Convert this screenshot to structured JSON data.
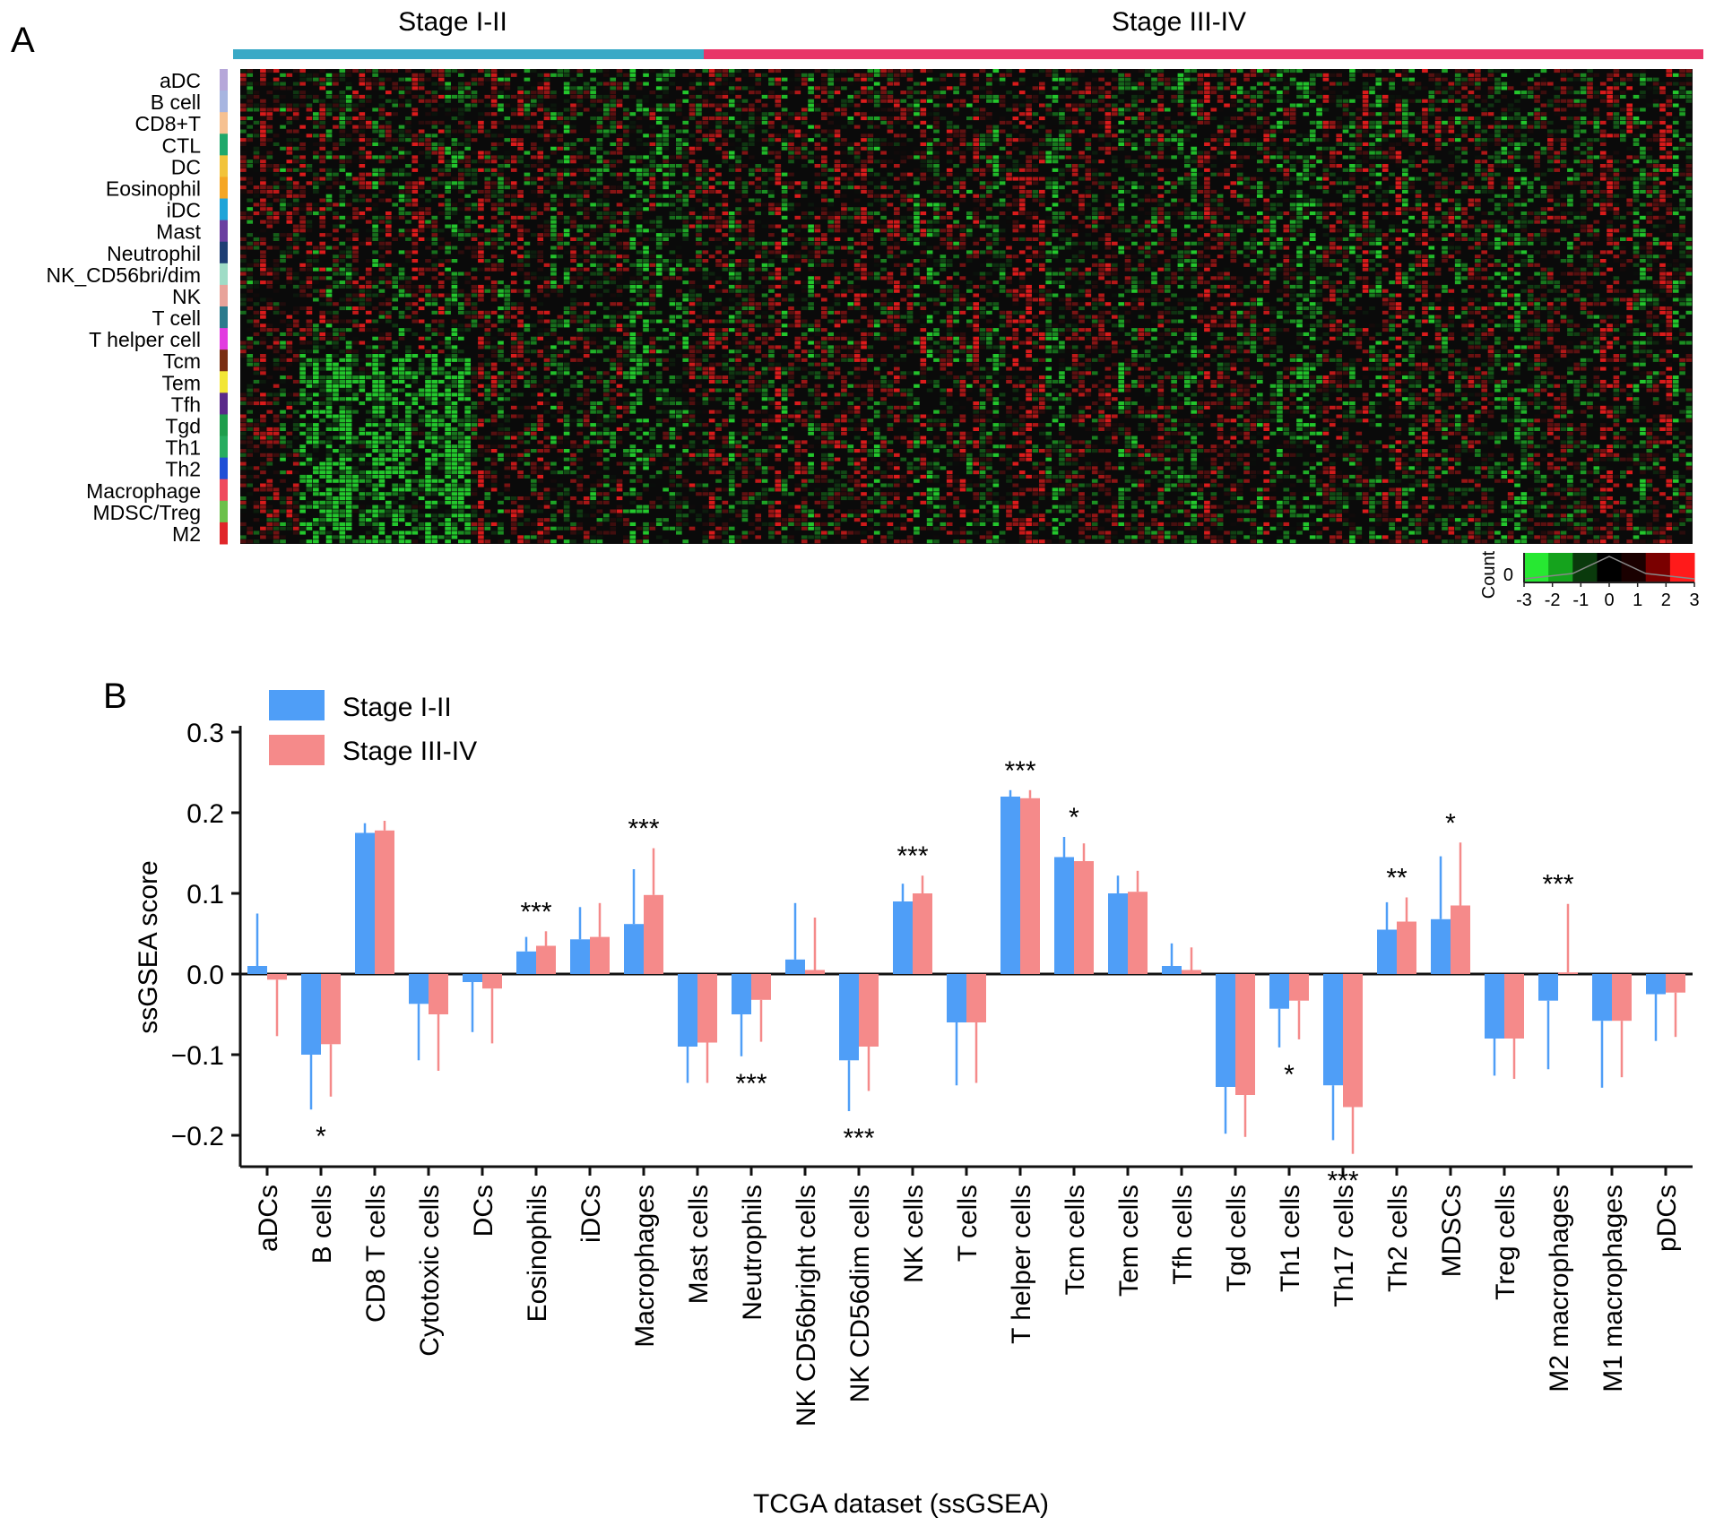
{
  "panel_a": {
    "label": "A",
    "groups": [
      {
        "name": "Stage I-II",
        "color": "#3aa9c6"
      },
      {
        "name": "Stage III-IV",
        "color": "#e83568"
      }
    ],
    "cell_types": [
      {
        "name": "aDC",
        "color": "#b6a7d9"
      },
      {
        "name": "B cell",
        "color": "#a7b5e0"
      },
      {
        "name": "CD8+T",
        "color": "#f6c191"
      },
      {
        "name": "CTL",
        "color": "#1fa86a"
      },
      {
        "name": "DC",
        "color": "#f2c33a"
      },
      {
        "name": "Eosinophil",
        "color": "#f5a623"
      },
      {
        "name": "iDC",
        "color": "#1fa4d8"
      },
      {
        "name": "Mast",
        "color": "#6a3fa0"
      },
      {
        "name": "Neutrophil",
        "color": "#1d3e74"
      },
      {
        "name": "NK_CD56bri/dim",
        "color": "#9fdcc6"
      },
      {
        "name": "NK",
        "color": "#e8a39a"
      },
      {
        "name": "T cell",
        "color": "#2b7a8c"
      },
      {
        "name": "T helper cell",
        "color": "#e23be0"
      },
      {
        "name": "Tcm",
        "color": "#7a2e12"
      },
      {
        "name": "Tem",
        "color": "#f2e635"
      },
      {
        "name": "Tfh",
        "color": "#5a2a8a"
      },
      {
        "name": "Tgd",
        "color": "#1e9e4c"
      },
      {
        "name": "Th1",
        "color": "#27ad5f"
      },
      {
        "name": "Th2",
        "color": "#1f4fd6"
      },
      {
        "name": "Macrophage",
        "color": "#ef4a5e"
      },
      {
        "name": "MDSC/Treg",
        "color": "#6cc04a"
      },
      {
        "name": "M2",
        "color": "#e0262a"
      }
    ],
    "legend": {
      "label": "Count",
      "zero_tick": "0",
      "ticks": [
        "-3",
        "-2",
        "-1",
        "0",
        "1",
        "2",
        "3"
      ],
      "colors": [
        "#27e832",
        "#15a31d",
        "#0a3a0c",
        "#000000",
        "#1a0000",
        "#7a0000",
        "#ff1a1a"
      ]
    }
  },
  "panel_b": {
    "label": "B",
    "legend": [
      {
        "name": "Stage I-II",
        "color": "#4f9ef7"
      },
      {
        "name": "Stage III-IV",
        "color": "#f58a8a"
      }
    ]
  },
  "chart_data": {
    "type": "bar",
    "xlabel": "TCGA dataset (ssGSEA)",
    "ylabel": "ssGSEA score",
    "ylim": [
      -0.24,
      0.3
    ],
    "yticks": [
      -0.2,
      -0.1,
      0.0,
      0.1,
      0.2,
      0.3
    ],
    "ytick_labels": [
      "−0.2",
      "−0.1",
      "0.0",
      "0.1",
      "0.2",
      "0.3"
    ],
    "grid": false,
    "legend_position": "top-left",
    "categories": [
      "aDCs",
      "B cells",
      "CD8 T cells",
      "Cytotoxic cells",
      "DCs",
      "Eosinophils",
      "iDCs",
      "Macrophages",
      "Mast cells",
      "Neutrophils",
      "NK CD56bright cells",
      "NK CD56dim cells",
      "NK cells",
      "T cells",
      "T helper cells",
      "Tcm cells",
      "Tem cells",
      "Tfh cells",
      "Tgd cells",
      "Th1 cells",
      "Th17 cells",
      "Th2 cells",
      "MDSCs",
      "Treg cells",
      "M2 macrophages",
      "M1 macrophages",
      "pDCs"
    ],
    "series": [
      {
        "name": "Stage I-II",
        "values": [
          0.01,
          -0.1,
          0.175,
          -0.037,
          -0.01,
          0.028,
          0.043,
          0.062,
          -0.09,
          -0.05,
          0.018,
          -0.107,
          0.09,
          -0.06,
          0.22,
          0.145,
          0.1,
          0.01,
          -0.14,
          -0.043,
          -0.138,
          0.055,
          0.068,
          -0.08,
          -0.033,
          -0.058,
          -0.025
        ],
        "errors": [
          0.065,
          0.068,
          0.012,
          0.07,
          0.062,
          0.018,
          0.04,
          0.068,
          0.045,
          0.052,
          0.07,
          0.063,
          0.022,
          0.078,
          0.008,
          0.025,
          0.022,
          0.028,
          0.058,
          0.048,
          0.068,
          0.034,
          0.078,
          0.046,
          0.085,
          0.083,
          0.058
        ]
      },
      {
        "name": "Stage III-IV",
        "values": [
          -0.007,
          -0.087,
          0.178,
          -0.05,
          -0.018,
          0.035,
          0.046,
          0.098,
          -0.085,
          -0.032,
          0.005,
          -0.09,
          0.1,
          -0.06,
          0.218,
          0.14,
          0.102,
          0.005,
          -0.15,
          -0.033,
          -0.165,
          0.065,
          0.085,
          -0.08,
          0.002,
          -0.058,
          -0.023
        ],
        "errors": [
          0.07,
          0.065,
          0.012,
          0.07,
          0.068,
          0.018,
          0.042,
          0.058,
          0.05,
          0.052,
          0.065,
          0.055,
          0.022,
          0.075,
          0.01,
          0.022,
          0.026,
          0.028,
          0.052,
          0.048,
          0.058,
          0.03,
          0.078,
          0.05,
          0.085,
          0.07,
          0.055
        ]
      }
    ],
    "annotations": [
      {
        "category": "B cells",
        "text": "*",
        "position": "below"
      },
      {
        "category": "Eosinophils",
        "text": "***",
        "position": "above"
      },
      {
        "category": "Macrophages",
        "text": "***",
        "position": "above"
      },
      {
        "category": "Neutrophils",
        "text": "***",
        "position": "below"
      },
      {
        "category": "NK CD56dim cells",
        "text": "***",
        "position": "below"
      },
      {
        "category": "NK cells",
        "text": "***",
        "position": "above"
      },
      {
        "category": "T helper cells",
        "text": "***",
        "position": "above"
      },
      {
        "category": "Tcm cells",
        "text": "*",
        "position": "above"
      },
      {
        "category": "Th1 cells",
        "text": "*",
        "position": "below"
      },
      {
        "category": "Th17 cells",
        "text": "***",
        "position": "below"
      },
      {
        "category": "Th2 cells",
        "text": "**",
        "position": "above"
      },
      {
        "category": "MDSCs",
        "text": "*",
        "position": "above"
      },
      {
        "category": "M2 macrophages",
        "text": "***",
        "position": "above"
      }
    ]
  }
}
